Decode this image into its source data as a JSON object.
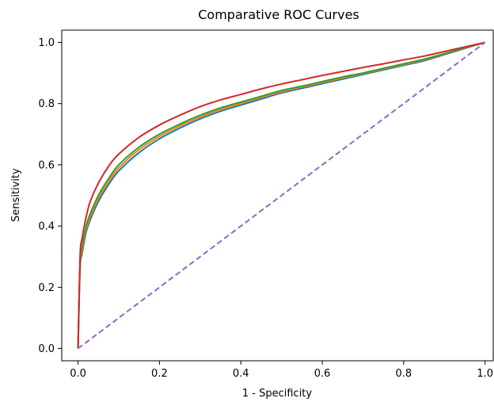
{
  "chart_data": {
    "type": "line",
    "title": "Comparative ROC Curves",
    "xlabel": "1 - Specificity",
    "ylabel": "Sensitivity",
    "xlim": [
      -0.04,
      1.02
    ],
    "ylim": [
      -0.04,
      1.04
    ],
    "xticks": [
      0.0,
      0.2,
      0.4,
      0.6,
      0.8,
      1.0
    ],
    "yticks": [
      0.0,
      0.2,
      0.4,
      0.6,
      0.8,
      1.0
    ],
    "xtick_labels": [
      "0.0",
      "0.2",
      "0.4",
      "0.6",
      "0.8",
      "1.0"
    ],
    "ytick_labels": [
      "0.0",
      "0.2",
      "0.4",
      "0.6",
      "0.8",
      "1.0"
    ],
    "grid": false,
    "legend": "none",
    "x": [
      0.0,
      0.005,
      0.01,
      0.02,
      0.03,
      0.05,
      0.075,
      0.1,
      0.15,
      0.2,
      0.25,
      0.3,
      0.35,
      0.4,
      0.45,
      0.5,
      0.55,
      0.6,
      0.65,
      0.7,
      0.75,
      0.8,
      0.85,
      0.9,
      0.95,
      1.0
    ],
    "series": [
      {
        "color": "#1f77b4",
        "values": [
          0.0,
          0.26,
          0.31,
          0.38,
          0.42,
          0.48,
          0.535,
          0.58,
          0.64,
          0.685,
          0.72,
          0.75,
          0.775,
          0.795,
          0.815,
          0.835,
          0.85,
          0.865,
          0.88,
          0.895,
          0.91,
          0.925,
          0.94,
          0.96,
          0.98,
          1.0
        ]
      },
      {
        "color": "#ff7f0e",
        "values": [
          0.0,
          0.27,
          0.32,
          0.39,
          0.43,
          0.49,
          0.545,
          0.59,
          0.65,
          0.693,
          0.727,
          0.756,
          0.781,
          0.8,
          0.82,
          0.839,
          0.854,
          0.869,
          0.884,
          0.898,
          0.913,
          0.928,
          0.943,
          0.962,
          0.981,
          1.0
        ]
      },
      {
        "color": "#2ca02c",
        "values": [
          0.0,
          0.28,
          0.33,
          0.4,
          0.44,
          0.5,
          0.555,
          0.6,
          0.658,
          0.7,
          0.733,
          0.762,
          0.786,
          0.805,
          0.824,
          0.843,
          0.857,
          0.872,
          0.887,
          0.9,
          0.915,
          0.93,
          0.945,
          0.963,
          0.982,
          1.0
        ]
      },
      {
        "color": "#d62728",
        "values": [
          0.0,
          0.3,
          0.36,
          0.43,
          0.48,
          0.54,
          0.595,
          0.635,
          0.69,
          0.73,
          0.762,
          0.79,
          0.812,
          0.83,
          0.848,
          0.864,
          0.878,
          0.892,
          0.905,
          0.918,
          0.93,
          0.943,
          0.955,
          0.97,
          0.985,
          1.0
        ]
      },
      {
        "color": "#9467bd",
        "dashed": true,
        "values": [
          0.0,
          0.005,
          0.01,
          0.02,
          0.03,
          0.05,
          0.075,
          0.1,
          0.15,
          0.2,
          0.25,
          0.3,
          0.35,
          0.4,
          0.45,
          0.5,
          0.55,
          0.6,
          0.65,
          0.7,
          0.75,
          0.8,
          0.85,
          0.9,
          0.95,
          1.0
        ]
      }
    ]
  }
}
